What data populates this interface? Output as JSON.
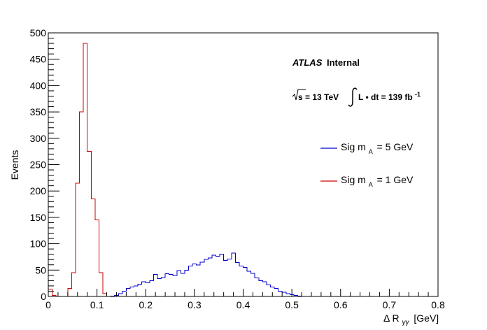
{
  "chart_data": {
    "type": "histogram",
    "xlabel": "Δ R",
    "xlabel_sub": "γγ",
    "xlabel_unit": "[GeV]",
    "ylabel": "Events",
    "xlim": [
      0,
      0.8
    ],
    "ylim": [
      0,
      500
    ],
    "x_ticks": [
      "0",
      "0.1",
      "0.2",
      "0.3",
      "0.4",
      "0.5",
      "0.6",
      "0.7",
      "0.8"
    ],
    "y_ticks": [
      "0",
      "50",
      "100",
      "150",
      "200",
      "250",
      "300",
      "350",
      "400",
      "450",
      "500"
    ],
    "bin_width": 0.008,
    "grid": false,
    "legend_position": "right",
    "atlas_label": {
      "atlas": "ATLAS",
      "internal": "Internal",
      "sqrt_s": "s = 13 TeV",
      "lumi_L": "L • dt = 139 fb",
      "lumi_exp": "-1"
    },
    "series": [
      {
        "name": "Sig m",
        "name_sub": "A",
        "name_rest": "= 5 GeV",
        "color": "#0000cc",
        "values": [
          0,
          0,
          0,
          0,
          0,
          0,
          0,
          0,
          0,
          0,
          0,
          0,
          0,
          0,
          0,
          0,
          1,
          2,
          5,
          10,
          15,
          18,
          20,
          23,
          28,
          26,
          30,
          42,
          34,
          36,
          43,
          42,
          40,
          49,
          44,
          50,
          58,
          62,
          60,
          65,
          70,
          73,
          78,
          76,
          80,
          68,
          71,
          82,
          64,
          58,
          55,
          48,
          44,
          35,
          30,
          28,
          22,
          18,
          15,
          10,
          8,
          5,
          3,
          2,
          1,
          0,
          0,
          0,
          0,
          0,
          0,
          0,
          0,
          0,
          0,
          0,
          0,
          0,
          0,
          0,
          0,
          0,
          0,
          0,
          0,
          0,
          0,
          0,
          0,
          0,
          0,
          0,
          0,
          0,
          0,
          0,
          0,
          0,
          0,
          0
        ]
      },
      {
        "name": "Sig m",
        "name_sub": "A",
        "name_rest": "= 1 GeV",
        "color": "#cc0000",
        "values": [
          14,
          2,
          0,
          0,
          0,
          15,
          45,
          215,
          350,
          480,
          275,
          185,
          145,
          45,
          5,
          0,
          0,
          0,
          0,
          0,
          0,
          0,
          0,
          0,
          0,
          0,
          0,
          0,
          0,
          0,
          0,
          0,
          0,
          0,
          0,
          0,
          0,
          0,
          0,
          0,
          0,
          0,
          0,
          0,
          0,
          0,
          0,
          0,
          0,
          0,
          0,
          0,
          0,
          0,
          0,
          0,
          0,
          0,
          0,
          0,
          0,
          0,
          0,
          0,
          0,
          0,
          0,
          0,
          0,
          0,
          0,
          0,
          0,
          0,
          0,
          0,
          0,
          0,
          0,
          0,
          0,
          0,
          0,
          0,
          0,
          0,
          0,
          0,
          0,
          0,
          0,
          0,
          0,
          0,
          0,
          0,
          0,
          0,
          0,
          0
        ]
      }
    ]
  }
}
